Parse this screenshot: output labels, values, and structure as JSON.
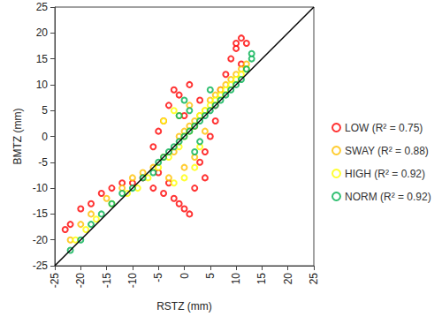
{
  "chart_data": {
    "type": "scatter",
    "xlabel": "RSTZ (mm)",
    "ylabel": "BMTZ (mm)",
    "xlim": [
      -25,
      25
    ],
    "xticks": [
      -25,
      -20,
      -15,
      -10,
      -5,
      0,
      5,
      10,
      15,
      20,
      25
    ],
    "ylim": [
      -25,
      25
    ],
    "yticks": [
      -25,
      -20,
      -15,
      -10,
      -5,
      0,
      5,
      10,
      15,
      20,
      25
    ],
    "grid": false,
    "legend": "right",
    "marker": "circle-open",
    "series": [
      {
        "name": "LOW (R² = 0.75)",
        "color": "#ff0000",
        "x": [
          -23,
          -22,
          -20,
          -18,
          -16,
          -14,
          -12,
          -10,
          -8,
          -6,
          -5,
          -4,
          -3,
          -2,
          -1,
          0,
          1,
          2,
          -4,
          -3,
          -2,
          -1,
          0,
          1,
          2,
          3,
          4,
          5,
          6,
          6,
          7,
          8,
          9,
          10,
          10,
          11,
          12,
          11,
          -6,
          -5,
          3,
          4
        ],
        "values": [
          -18,
          -17,
          -14,
          -13,
          -11,
          -10,
          -9,
          -9,
          -8,
          -10,
          -7,
          -11,
          -9,
          -12,
          -13,
          -14,
          -15,
          -10,
          3,
          6,
          9,
          8,
          4,
          10,
          2,
          7,
          -3,
          0,
          3,
          6,
          9,
          12,
          15,
          17,
          18,
          19,
          18,
          14,
          -2,
          1,
          -5,
          -8
        ]
      },
      {
        "name": "SWAY (R² = 0.88)",
        "color": "#ffc000",
        "x": [
          -22,
          -20,
          -18,
          -15,
          -12,
          -10,
          -8,
          -6,
          -4,
          -2,
          -1,
          0,
          1,
          2,
          3,
          4,
          5,
          6,
          7,
          8,
          9,
          10,
          11,
          12,
          0,
          2,
          -3,
          -1,
          1,
          4
        ],
        "values": [
          -20,
          -17,
          -15,
          -12,
          -10,
          -8,
          -7,
          -6,
          -4,
          -3,
          0,
          1,
          2,
          3,
          4,
          5,
          7,
          8,
          9,
          10,
          11,
          12,
          13,
          14,
          -6,
          -4,
          -8,
          4,
          6,
          1
        ]
      },
      {
        "name": "HIGH (R² = 0.92)",
        "color": "#ffff00",
        "x": [
          -21,
          -19,
          -17,
          -14,
          -11,
          -9,
          -7,
          -5,
          -3,
          -1,
          0,
          1,
          2,
          3,
          4,
          5,
          6,
          7,
          8,
          9,
          10,
          11,
          12,
          -2,
          0,
          2,
          -4,
          -2,
          3
        ],
        "values": [
          -20,
          -18,
          -16,
          -13,
          -11,
          -10,
          -8,
          -6,
          -4,
          -2,
          0,
          1,
          2,
          4,
          5,
          6,
          7,
          8,
          9,
          10,
          11,
          12,
          13,
          -9,
          -8,
          -6,
          3,
          5,
          -2
        ]
      },
      {
        "name": "NORM (R² = 0.92)",
        "color": "#00b050",
        "x": [
          -22,
          -20,
          -18,
          -16,
          -14,
          -12,
          -10,
          -8,
          -6,
          -5,
          -4,
          -3,
          -2,
          -1,
          0,
          1,
          2,
          3,
          4,
          5,
          6,
          7,
          8,
          9,
          10,
          11,
          12,
          13,
          13,
          1,
          0,
          -1,
          3,
          2,
          5
        ],
        "values": [
          -22,
          -20,
          -17,
          -15,
          -13,
          -11,
          -10,
          -8,
          -7,
          -5,
          -4,
          -3,
          -2,
          -1,
          0,
          1,
          2,
          3,
          4,
          5,
          6,
          7,
          8,
          9,
          10,
          11,
          13,
          15,
          16,
          5,
          7,
          4,
          -1,
          -3,
          9
        ]
      }
    ],
    "reference_line": {
      "x": [
        -25,
        25
      ],
      "y": [
        -25,
        25
      ],
      "color": "#000000"
    }
  }
}
